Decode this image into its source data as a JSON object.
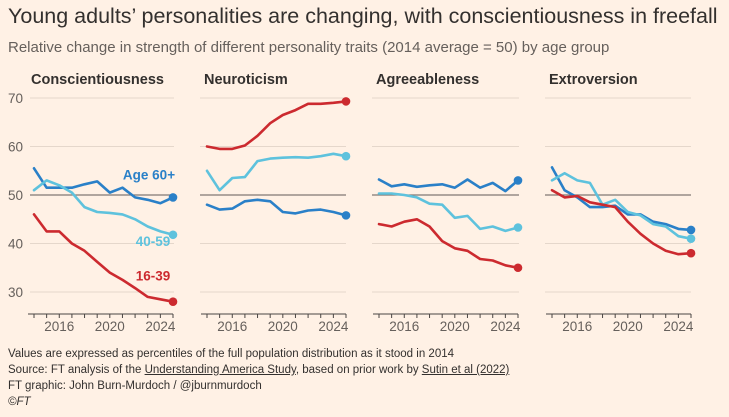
{
  "title": "Young adults’ personalities are changing, with conscientiousness in freefall",
  "subtitle": "Relative change in strength of different personality traits (2014 average = 50) by age group",
  "colors": {
    "background": "#fff1e5",
    "age60": "#2a80c8",
    "age4059": "#5ec2dd",
    "age1639": "#cc2a2f",
    "grid": "#e5d7cb",
    "ref": "#807873"
  },
  "footer": {
    "line1": "Values are expressed as percentiles of the full population distribution as it stood in 2014",
    "line2_prefix": "Source: FT analysis of the ",
    "line2_link1": "Understanding America Study",
    "line2_mid": ", based on prior work by ",
    "line2_link2": "Sutin et al (2022)",
    "line3": "FT graphic: John Burn-Murdoch / @jburnmurdoch",
    "line4": "©FT"
  },
  "chart_data": [
    {
      "type": "line",
      "title": "Conscientiousness",
      "x": [
        2014,
        2015,
        2016,
        2017,
        2018,
        2019,
        2020,
        2021,
        2022,
        2023,
        2024,
        2025
      ],
      "xticks": [
        2016,
        2020,
        2024
      ],
      "yticks": [
        30,
        40,
        50,
        60,
        70
      ],
      "ylim": [
        27,
        72
      ],
      "reference_line": 50,
      "series": [
        {
          "name": "Age 60+",
          "color": "#2a80c8",
          "values": [
            55.5,
            51.5,
            51.5,
            51.5,
            52.2,
            52.8,
            50.5,
            51.5,
            49.5,
            49,
            48.3,
            49.5
          ]
        },
        {
          "name": "40-59",
          "color": "#5ec2dd",
          "values": [
            51,
            53,
            52,
            50.5,
            47.5,
            46.5,
            46.3,
            46,
            45,
            43.5,
            42.5,
            41.8
          ]
        },
        {
          "name": "16-39",
          "color": "#cc2a2f",
          "values": [
            46,
            42.5,
            42.5,
            40,
            38.5,
            36.2,
            34,
            32.5,
            30.8,
            29,
            28.5,
            28
          ]
        }
      ]
    },
    {
      "type": "line",
      "title": "Neuroticism",
      "x": [
        2014,
        2015,
        2016,
        2017,
        2018,
        2019,
        2020,
        2021,
        2022,
        2023,
        2024,
        2025
      ],
      "xticks": [
        2016,
        2020,
        2024
      ],
      "yticks": [
        30,
        40,
        50,
        60,
        70
      ],
      "ylim": [
        27,
        72
      ],
      "reference_line": 50,
      "series": [
        {
          "name": "Age 60+",
          "color": "#2a80c8",
          "values": [
            48,
            47,
            47.2,
            48.7,
            49,
            48.7,
            46.5,
            46.2,
            46.8,
            47,
            46.5,
            45.8
          ]
        },
        {
          "name": "40-59",
          "color": "#5ec2dd",
          "values": [
            55,
            51,
            53.5,
            53.7,
            57,
            57.5,
            57.7,
            57.8,
            57.7,
            58,
            58.5,
            58
          ]
        },
        {
          "name": "16-39",
          "color": "#cc2a2f",
          "values": [
            60,
            59.5,
            59.5,
            60.2,
            62.2,
            64.8,
            66.5,
            67.5,
            68.8,
            68.8,
            69,
            69.3
          ]
        }
      ]
    },
    {
      "type": "line",
      "title": "Agreeableness",
      "x": [
        2014,
        2015,
        2016,
        2017,
        2018,
        2019,
        2020,
        2021,
        2022,
        2023,
        2024,
        2025
      ],
      "xticks": [
        2016,
        2020,
        2024
      ],
      "yticks": [
        30,
        40,
        50,
        60,
        70
      ],
      "ylim": [
        27,
        72
      ],
      "reference_line": 50,
      "series": [
        {
          "name": "Age 60+",
          "color": "#2a80c8",
          "values": [
            53.2,
            51.8,
            52.2,
            51.7,
            52,
            52.2,
            51.5,
            53.2,
            51.5,
            52.5,
            50.8,
            53
          ]
        },
        {
          "name": "40-59",
          "color": "#5ec2dd",
          "values": [
            50.3,
            50.3,
            50,
            49.5,
            48.2,
            48,
            45.3,
            45.7,
            43,
            43.5,
            42.6,
            43.3
          ]
        },
        {
          "name": "16-39",
          "color": "#cc2a2f",
          "values": [
            44,
            43.5,
            44.5,
            45,
            43.5,
            40.5,
            39,
            38.5,
            36.8,
            36.5,
            35.5,
            35
          ]
        }
      ]
    },
    {
      "type": "line",
      "title": "Extroversion",
      "x": [
        2014,
        2015,
        2016,
        2017,
        2018,
        2019,
        2020,
        2021,
        2022,
        2023,
        2024,
        2025
      ],
      "xticks": [
        2016,
        2020,
        2024
      ],
      "yticks": [
        30,
        40,
        50,
        60,
        70
      ],
      "ylim": [
        27,
        72
      ],
      "reference_line": 50,
      "series": [
        {
          "name": "Age 60+",
          "color": "#2a80c8",
          "values": [
            55.7,
            51,
            49.5,
            47.5,
            47.5,
            47.8,
            46,
            46,
            44.5,
            44,
            43,
            42.8
          ]
        },
        {
          "name": "40-59",
          "color": "#5ec2dd",
          "values": [
            53,
            54.5,
            53,
            52.5,
            48,
            49,
            46.5,
            45.8,
            44,
            43.5,
            41.5,
            41
          ]
        },
        {
          "name": "16-39",
          "color": "#cc2a2f",
          "values": [
            51,
            49.5,
            49.8,
            48.5,
            48,
            47.5,
            44.5,
            42,
            40,
            38.5,
            37.8,
            38
          ]
        }
      ]
    }
  ]
}
